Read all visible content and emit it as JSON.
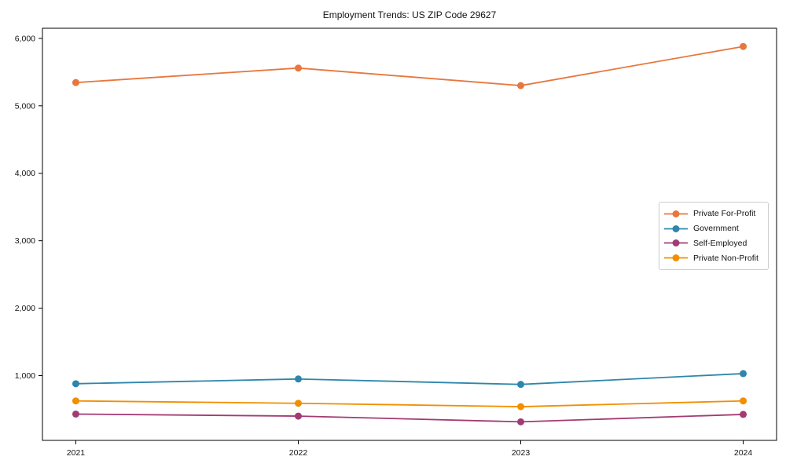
{
  "chart_data": {
    "type": "line",
    "title": "Employment Trends: US ZIP Code 29627",
    "xlabel": "",
    "ylabel": "",
    "x": [
      2021,
      2022,
      2023,
      2024
    ],
    "x_tick_labels": [
      "2021",
      "2022",
      "2023",
      "2024"
    ],
    "y_ticks": [
      1000,
      2000,
      3000,
      4000,
      5000,
      6000
    ],
    "y_tick_labels": [
      "1,000",
      "2,000",
      "3,000",
      "4,000",
      "5,000",
      "6,000"
    ],
    "xlim": [
      2020.85,
      2024.15
    ],
    "ylim": [
      40,
      6150
    ],
    "grid": false,
    "legend_position": "center-right",
    "axis_color": "#000000",
    "series": [
      {
        "name": "Private For-Profit",
        "color": "#E8773D",
        "values": [
          5345,
          5560,
          5300,
          5880
        ]
      },
      {
        "name": "Government",
        "color": "#2E86AB",
        "values": [
          880,
          950,
          870,
          1030
        ]
      },
      {
        "name": "Self-Employed",
        "color": "#A23B72",
        "values": [
          430,
          400,
          315,
          425
        ]
      },
      {
        "name": "Private Non-Profit",
        "color": "#F18F01",
        "values": [
          625,
          590,
          540,
          625
        ]
      }
    ]
  }
}
